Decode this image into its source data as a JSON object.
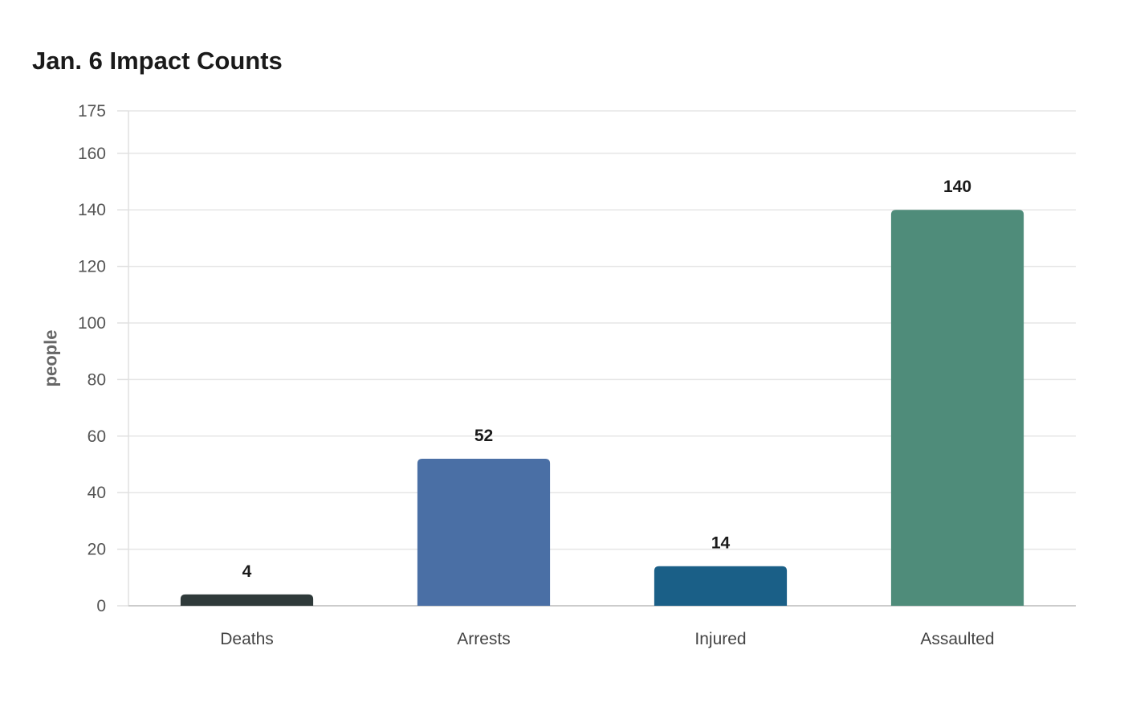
{
  "chart_data": {
    "type": "bar",
    "title": "Jan. 6 Impact Counts",
    "xlabel": "",
    "ylabel": "people",
    "categories": [
      "Deaths",
      "Arrests",
      "Injured",
      "Assaulted"
    ],
    "values": [
      4,
      52,
      14,
      140
    ],
    "colors": [
      "#2f3a3a",
      "#4a6fa5",
      "#1a5f87",
      "#4f8c7a"
    ],
    "ylim": [
      0,
      175
    ],
    "yticks": [
      0,
      20,
      40,
      60,
      80,
      100,
      120,
      140,
      160,
      175
    ],
    "grid": true,
    "legend": "none"
  }
}
